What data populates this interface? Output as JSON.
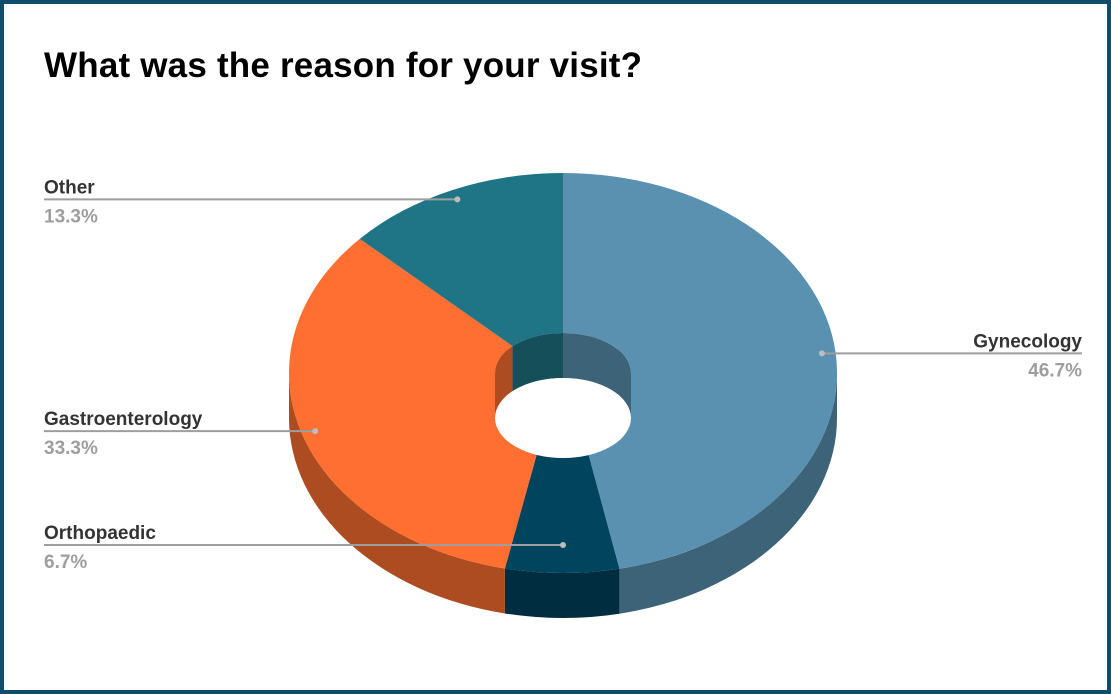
{
  "chart_data": {
    "type": "pie",
    "title": "What was the reason for your visit?",
    "style": "3d-donut",
    "slices": [
      {
        "label": "Gynecology",
        "value": 46.7,
        "display": "46.7%",
        "color": "#5a91b0"
      },
      {
        "label": "Orthopaedic",
        "value": 6.7,
        "display": "6.7%",
        "color": "#00445e"
      },
      {
        "label": "Gastroenterology",
        "value": 33.3,
        "display": "33.3%",
        "color": "#ff6f31"
      },
      {
        "label": "Other",
        "value": 13.3,
        "display": "13.3%",
        "color": "#1f7585"
      }
    ]
  }
}
